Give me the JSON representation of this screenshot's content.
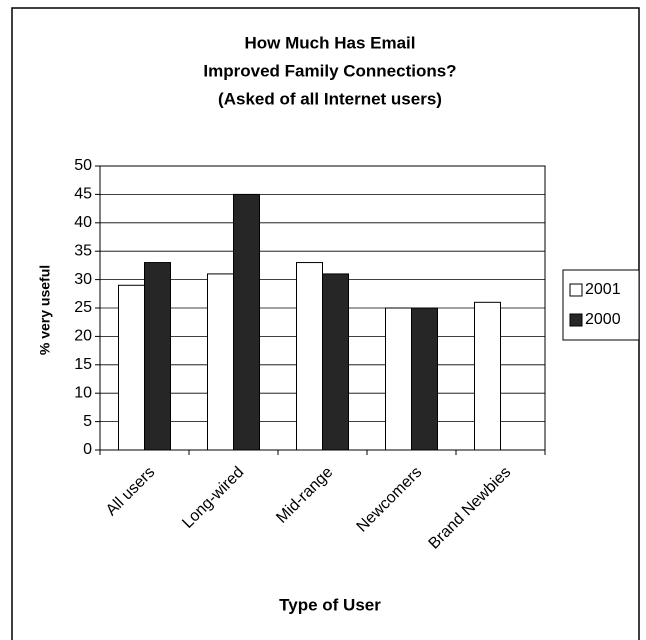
{
  "chart_data": {
    "type": "bar",
    "title": [
      "How Much Has Email",
      "Improved Family Connections?",
      "(Asked of all Internet users)"
    ],
    "categories": [
      "All users",
      "Long-wired",
      "Mid-range",
      "Newcomers",
      "Brand Newbies"
    ],
    "series": [
      {
        "name": "2001",
        "color": "#ffffff",
        "values": [
          29,
          31,
          33,
          25,
          26
        ]
      },
      {
        "name": "2000",
        "color": "#262626",
        "values": [
          33,
          45,
          31,
          25,
          null
        ]
      }
    ],
    "ylim": [
      0,
      50
    ],
    "yticks": [
      0,
      5,
      10,
      15,
      20,
      25,
      30,
      35,
      40,
      45,
      50
    ],
    "y_label": "% very useful",
    "x_label": "Type of User",
    "grid": true,
    "legend": "right"
  }
}
